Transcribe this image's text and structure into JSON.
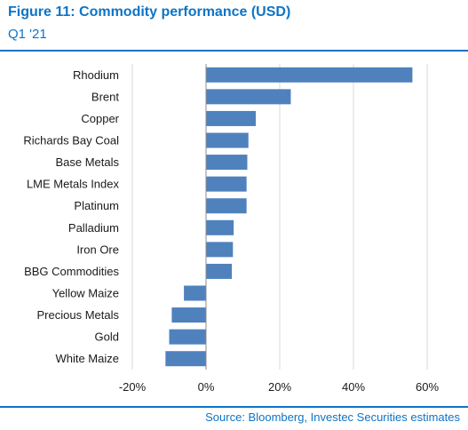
{
  "header": {
    "title": "Figure 11: Commodity performance (USD)",
    "subtitle": "Q1 '21"
  },
  "footer": {
    "source": "Source: Bloomberg, Investec Securities estimates"
  },
  "colors": {
    "accent": "#0e74c5",
    "bar": "#4f81bd",
    "grid": "#d9d9d9"
  },
  "chart_data": {
    "type": "bar",
    "orientation": "horizontal",
    "categories": [
      "Rhodium",
      "Brent",
      "Copper",
      "Richards Bay Coal",
      "Base Metals",
      "LME Metals Index",
      "Platinum",
      "Palladium",
      "Iron Ore",
      "BBG Commodities",
      "Yellow Maize",
      "Precious Metals",
      "Gold",
      "White Maize"
    ],
    "values": [
      56,
      23,
      13.5,
      11.5,
      11.2,
      11,
      11,
      7.5,
      7.3,
      7,
      -6,
      -9.3,
      -10,
      -11
    ],
    "unit": "%",
    "xlim": [
      -20,
      60
    ],
    "xticks": [
      -20,
      0,
      20,
      40,
      60
    ],
    "xtick_labels": [
      "-20%",
      "0%",
      "20%",
      "40%",
      "60%"
    ],
    "grid": "vertical"
  }
}
